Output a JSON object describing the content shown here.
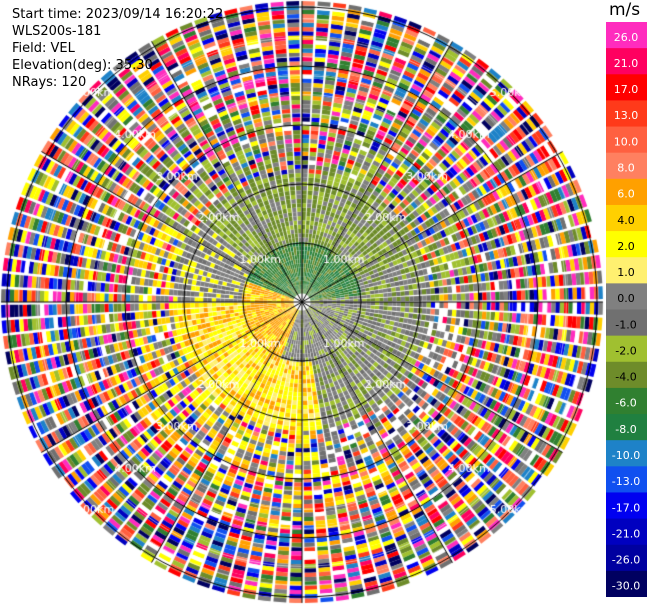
{
  "info": {
    "start_time": "Start time: 2023/09/14 16:20:22",
    "instrument": "WLS200s-181",
    "field": "Field: VEL",
    "elevation": "Elevation(deg): 35.30",
    "nrays": "NRays: 120"
  },
  "colorbar": {
    "unit": "m/s",
    "ticks": [
      "26.0",
      "21.0",
      "17.0",
      "13.0",
      "10.0",
      "8.0",
      "6.0",
      "4.0",
      "2.0",
      "1.0",
      "0.0",
      "-1.0",
      "-2.0",
      "-4.0",
      "-6.0",
      "-8.0",
      "-10.0",
      "-13.0",
      "-17.0",
      "-21.0",
      "-26.0",
      "-30.0"
    ],
    "colors": [
      "#ff2cbe",
      "#ff0060",
      "#ff0000",
      "#ff3a1a",
      "#ff6040",
      "#ff8060",
      "#ffa000",
      "#ffd000",
      "#ffff00",
      "#fff070",
      "#808080",
      "#707070",
      "#a0c030",
      "#6e8c2a",
      "#308030",
      "#208040",
      "#1e82c8",
      "#1050f0",
      "#0000f0",
      "#0000c0",
      "#0000a0",
      "#000060"
    ]
  },
  "chart_data": {
    "type": "ppi",
    "field": "VEL",
    "units": "m/s",
    "nrays": 120,
    "elevation_deg": 35.3,
    "range_ring_labels": [
      "1.00km",
      "2.00km",
      "3.00km",
      "4.00km",
      "5.00km"
    ],
    "ring_ranges_km": [
      1,
      2,
      3,
      4,
      5
    ],
    "max_range_km": 5.1,
    "spoke_azimuths_deg": [
      0,
      30,
      60,
      90,
      120,
      150,
      180,
      210,
      240,
      270,
      300,
      330
    ],
    "colorbar_range": [
      -30,
      26
    ]
  }
}
